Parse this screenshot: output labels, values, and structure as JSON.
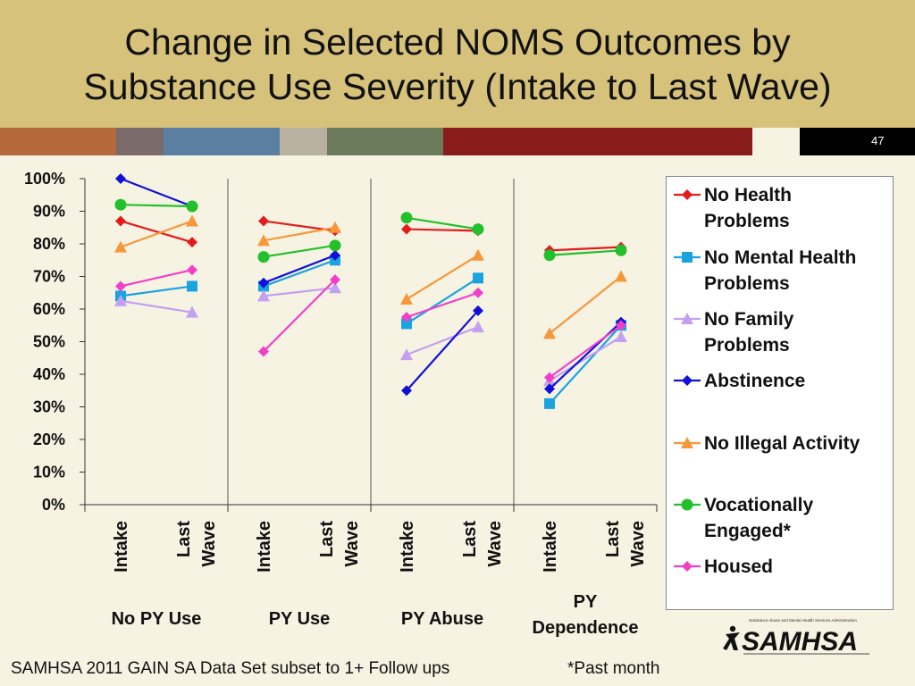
{
  "slide": {
    "title_line1": "Change in Selected NOMS Outcomes by",
    "title_line2": "Substance Use Severity (Intake to Last Wave)",
    "slide_number": "47",
    "footer_source": "SAMHSA 2011 GAIN SA Data Set subset to 1+ Follow ups",
    "footer_note": "*Past month",
    "logo_text": "SAMHSA",
    "logo_subtext": "Substance Abuse and Mental Health Services Administration"
  },
  "colors": {
    "title_band": "#d6c27a",
    "stripes": [
      "#b5683a",
      "#7a6a6a",
      "#5a7fa0",
      "#b8b0a0",
      "#6b7a5a",
      "#8a1c1c",
      "#f7f3e3",
      "#000000"
    ]
  },
  "chart_data": {
    "type": "line",
    "ylim": [
      0,
      100
    ],
    "yticks": [
      "0%",
      "10%",
      "20%",
      "30%",
      "40%",
      "50%",
      "60%",
      "70%",
      "80%",
      "90%",
      "100%"
    ],
    "x_tick_labels": [
      "Intake",
      "Last Wave"
    ],
    "groups": [
      "No PY Use",
      "PY Use",
      "PY Abuse",
      "PY Dependence"
    ],
    "grid": false,
    "legend_position": "right",
    "series": [
      {
        "name": "No Health Problems",
        "color": "#e41a1c",
        "marker": "diamond",
        "values": [
          [
            87,
            80.5
          ],
          [
            87,
            84
          ],
          [
            84.5,
            84
          ],
          [
            78,
            79
          ]
        ]
      },
      {
        "name": "No Mental Health Problems",
        "color": "#1ba3e0",
        "marker": "square",
        "values": [
          [
            64,
            67
          ],
          [
            67,
            75
          ],
          [
            55.5,
            69.5
          ],
          [
            31,
            55
          ]
        ]
      },
      {
        "name": "No Family Problems",
        "color": "#c3a0f0",
        "marker": "triangle",
        "values": [
          [
            62.5,
            59
          ],
          [
            64,
            66.5
          ],
          [
            46,
            54.5
          ],
          [
            38,
            51.5
          ]
        ]
      },
      {
        "name": "Abstinence",
        "color": "#1010d8",
        "marker": "diamond",
        "values": [
          [
            100,
            91.5
          ],
          [
            68,
            76.5
          ],
          [
            35,
            59.5
          ],
          [
            35.5,
            56
          ]
        ]
      },
      {
        "name": "No Illegal Activity",
        "color": "#f7973a",
        "marker": "triangle",
        "values": [
          [
            79,
            87
          ],
          [
            81,
            85
          ],
          [
            63,
            76.5
          ],
          [
            52.5,
            70
          ]
        ]
      },
      {
        "name": "Vocationally Engaged*",
        "color": "#22c02a",
        "marker": "circle",
        "values": [
          [
            92,
            91.5
          ],
          [
            76,
            79.5
          ],
          [
            88,
            84.5
          ],
          [
            76.5,
            78
          ]
        ]
      },
      {
        "name": "Housed",
        "color": "#f040c8",
        "marker": "diamond",
        "values": [
          [
            67,
            72
          ],
          [
            47,
            69
          ],
          [
            57.5,
            65
          ],
          [
            39,
            55
          ]
        ]
      }
    ]
  }
}
